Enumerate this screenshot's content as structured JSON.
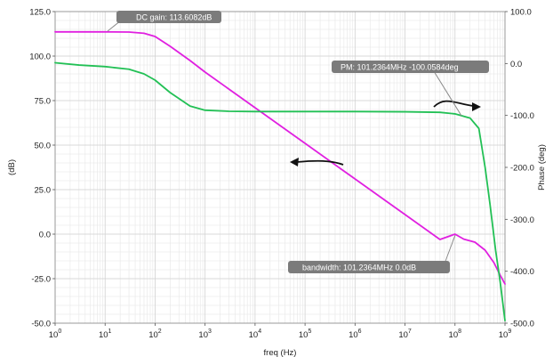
{
  "chart_data": {
    "type": "line",
    "xlabel": "freq (Hz)",
    "x_scale": "log",
    "xlim": [
      1,
      1000000000
    ],
    "x_ticks": [
      {
        "value": 1,
        "mantissa": "10",
        "exp": "0"
      },
      {
        "value": 10,
        "mantissa": "10",
        "exp": "1"
      },
      {
        "value": 100,
        "mantissa": "10",
        "exp": "2"
      },
      {
        "value": 1000,
        "mantissa": "10",
        "exp": "3"
      },
      {
        "value": 10000,
        "mantissa": "10",
        "exp": "4"
      },
      {
        "value": 100000,
        "mantissa": "10",
        "exp": "5"
      },
      {
        "value": 1000000,
        "mantissa": "10",
        "exp": "6"
      },
      {
        "value": 10000000,
        "mantissa": "10",
        "exp": "7"
      },
      {
        "value": 100000000,
        "mantissa": "10",
        "exp": "8"
      },
      {
        "value": 1000000000,
        "mantissa": "10",
        "exp": "9"
      }
    ],
    "y_left": {
      "label": "(dB)",
      "ylim": [
        -50,
        125
      ],
      "ticks": [
        {
          "value": -50,
          "label": "-50.0"
        },
        {
          "value": -25,
          "label": "-25.0"
        },
        {
          "value": 0,
          "label": "0.0"
        },
        {
          "value": 25,
          "label": "25.0"
        },
        {
          "value": 50,
          "label": "50.0"
        },
        {
          "value": 75,
          "label": "75.0"
        },
        {
          "value": 100,
          "label": "100.0"
        },
        {
          "value": 125,
          "label": "125.0"
        }
      ]
    },
    "y_right": {
      "label": "Phase (deg)",
      "ylim": [
        -500,
        100
      ],
      "ticks": [
        {
          "value": -500,
          "label": "-500.0"
        },
        {
          "value": -400,
          "label": "-400.0"
        },
        {
          "value": -300,
          "label": "-300.0"
        },
        {
          "value": -200,
          "label": "-200.0"
        },
        {
          "value": -100,
          "label": "-100.0"
        },
        {
          "value": 0,
          "label": "0.0"
        },
        {
          "value": 100,
          "label": "100.0"
        }
      ]
    },
    "grid": true,
    "series": [
      {
        "axis": "left",
        "color": "#e020e0",
        "points": [
          [
            1,
            113.6
          ],
          [
            10,
            113.6
          ],
          [
            30,
            113.5
          ],
          [
            60,
            112.8
          ],
          [
            100,
            111.0
          ],
          [
            200,
            105.5
          ],
          [
            500,
            97.5
          ],
          [
            1000,
            91.0
          ],
          [
            10000,
            71.0
          ],
          [
            100000,
            51.0
          ],
          [
            1000000,
            31.0
          ],
          [
            10000000,
            11.0
          ],
          [
            50000000,
            -3.0
          ],
          [
            100000000,
            0.0
          ],
          [
            150000000,
            -2.8
          ],
          [
            250000000,
            -4.5
          ],
          [
            400000000,
            -9.0
          ],
          [
            600000000,
            -16.0
          ],
          [
            800000000,
            -23.0
          ],
          [
            1000000000,
            -28.0
          ]
        ]
      },
      {
        "axis": "right",
        "color": "#22c055",
        "points": [
          [
            1,
            1.5
          ],
          [
            3,
            -3.0
          ],
          [
            10,
            -6.0
          ],
          [
            30,
            -11.0
          ],
          [
            60,
            -20.0
          ],
          [
            100,
            -32.0
          ],
          [
            200,
            -56.0
          ],
          [
            500,
            -82.0
          ],
          [
            1000,
            -90.0
          ],
          [
            3000,
            -92.0
          ],
          [
            10000,
            -92.5
          ],
          [
            100000,
            -92.5
          ],
          [
            1000000,
            -92.5
          ],
          [
            10000000,
            -93.0
          ],
          [
            50000000,
            -94.0
          ],
          [
            100000000,
            -97.0
          ],
          [
            200000000,
            -105.0
          ],
          [
            300000000,
            -125.0
          ],
          [
            400000000,
            -200.0
          ],
          [
            500000000,
            -270.0
          ],
          [
            650000000,
            -360.0
          ],
          [
            800000000,
            -420.0
          ],
          [
            1000000000,
            -495.0
          ]
        ]
      }
    ],
    "annotations": [
      {
        "text": "DC gain: 113.6082dB",
        "x": 10,
        "y": 113.6,
        "axis": "left"
      },
      {
        "text": "PM: 101.2364MHz -100.0584deg",
        "x": 101236400,
        "y": -100,
        "axis": "right"
      },
      {
        "text": "bandwidth: 101.2364MHz 0.0dB",
        "x": 101236400,
        "y": 0,
        "axis": "left"
      }
    ]
  }
}
